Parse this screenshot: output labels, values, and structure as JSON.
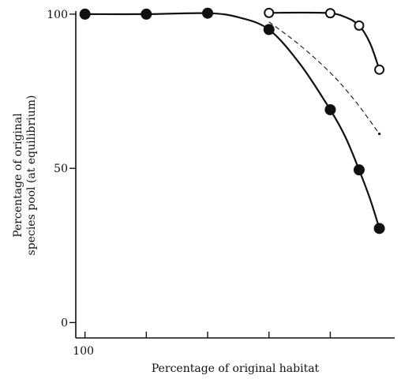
{
  "chart_data": {
    "type": "line",
    "xlabel": "Percentage of original habitat",
    "ylabel_line1": "Percentage of original",
    "ylabel_line2": "species pool (at equilibrium)",
    "x_tick_labels": [
      {
        "value": 100,
        "label": "100"
      }
    ],
    "y_tick_labels": [
      {
        "value": 0,
        "label": "0"
      },
      {
        "value": 50,
        "label": "50"
      },
      {
        "value": 100,
        "label": "100"
      }
    ],
    "x_ticks": [
      100,
      80,
      60,
      40,
      20
    ],
    "xlim": [
      103,
      -1
    ],
    "ylim": [
      -5,
      101
    ],
    "grid": false,
    "series": [
      {
        "style": "solid-filled",
        "points": [
          [
            100,
            100
          ],
          [
            80,
            100
          ],
          [
            60,
            100.3
          ],
          [
            40,
            95
          ],
          [
            20,
            69
          ],
          [
            10.6,
            49.5
          ],
          [
            4,
            30.5
          ]
        ],
        "curve": [
          [
            100,
            100
          ],
          [
            80,
            100
          ],
          [
            60,
            100.3
          ],
          [
            50,
            99
          ],
          [
            40,
            95
          ],
          [
            30,
            84
          ],
          [
            20,
            69
          ],
          [
            15,
            60
          ],
          [
            10.6,
            49.5
          ],
          [
            7,
            40
          ],
          [
            4,
            30.5
          ]
        ]
      },
      {
        "style": "solid-open",
        "points": [
          [
            40,
            100.4
          ],
          [
            20,
            100.3
          ],
          [
            10.6,
            96.3
          ],
          [
            4,
            82
          ]
        ],
        "curve": [
          [
            40,
            100.4
          ],
          [
            30,
            100.5
          ],
          [
            20,
            100.3
          ],
          [
            15,
            99
          ],
          [
            10.6,
            96.3
          ],
          [
            7,
            90.5
          ],
          [
            4,
            82
          ]
        ]
      },
      {
        "style": "dashed",
        "points": [],
        "curve": [
          [
            40,
            97.5
          ],
          [
            30,
            90
          ],
          [
            20,
            81
          ],
          [
            12,
            72
          ],
          [
            4,
            61.2
          ]
        ]
      }
    ]
  }
}
